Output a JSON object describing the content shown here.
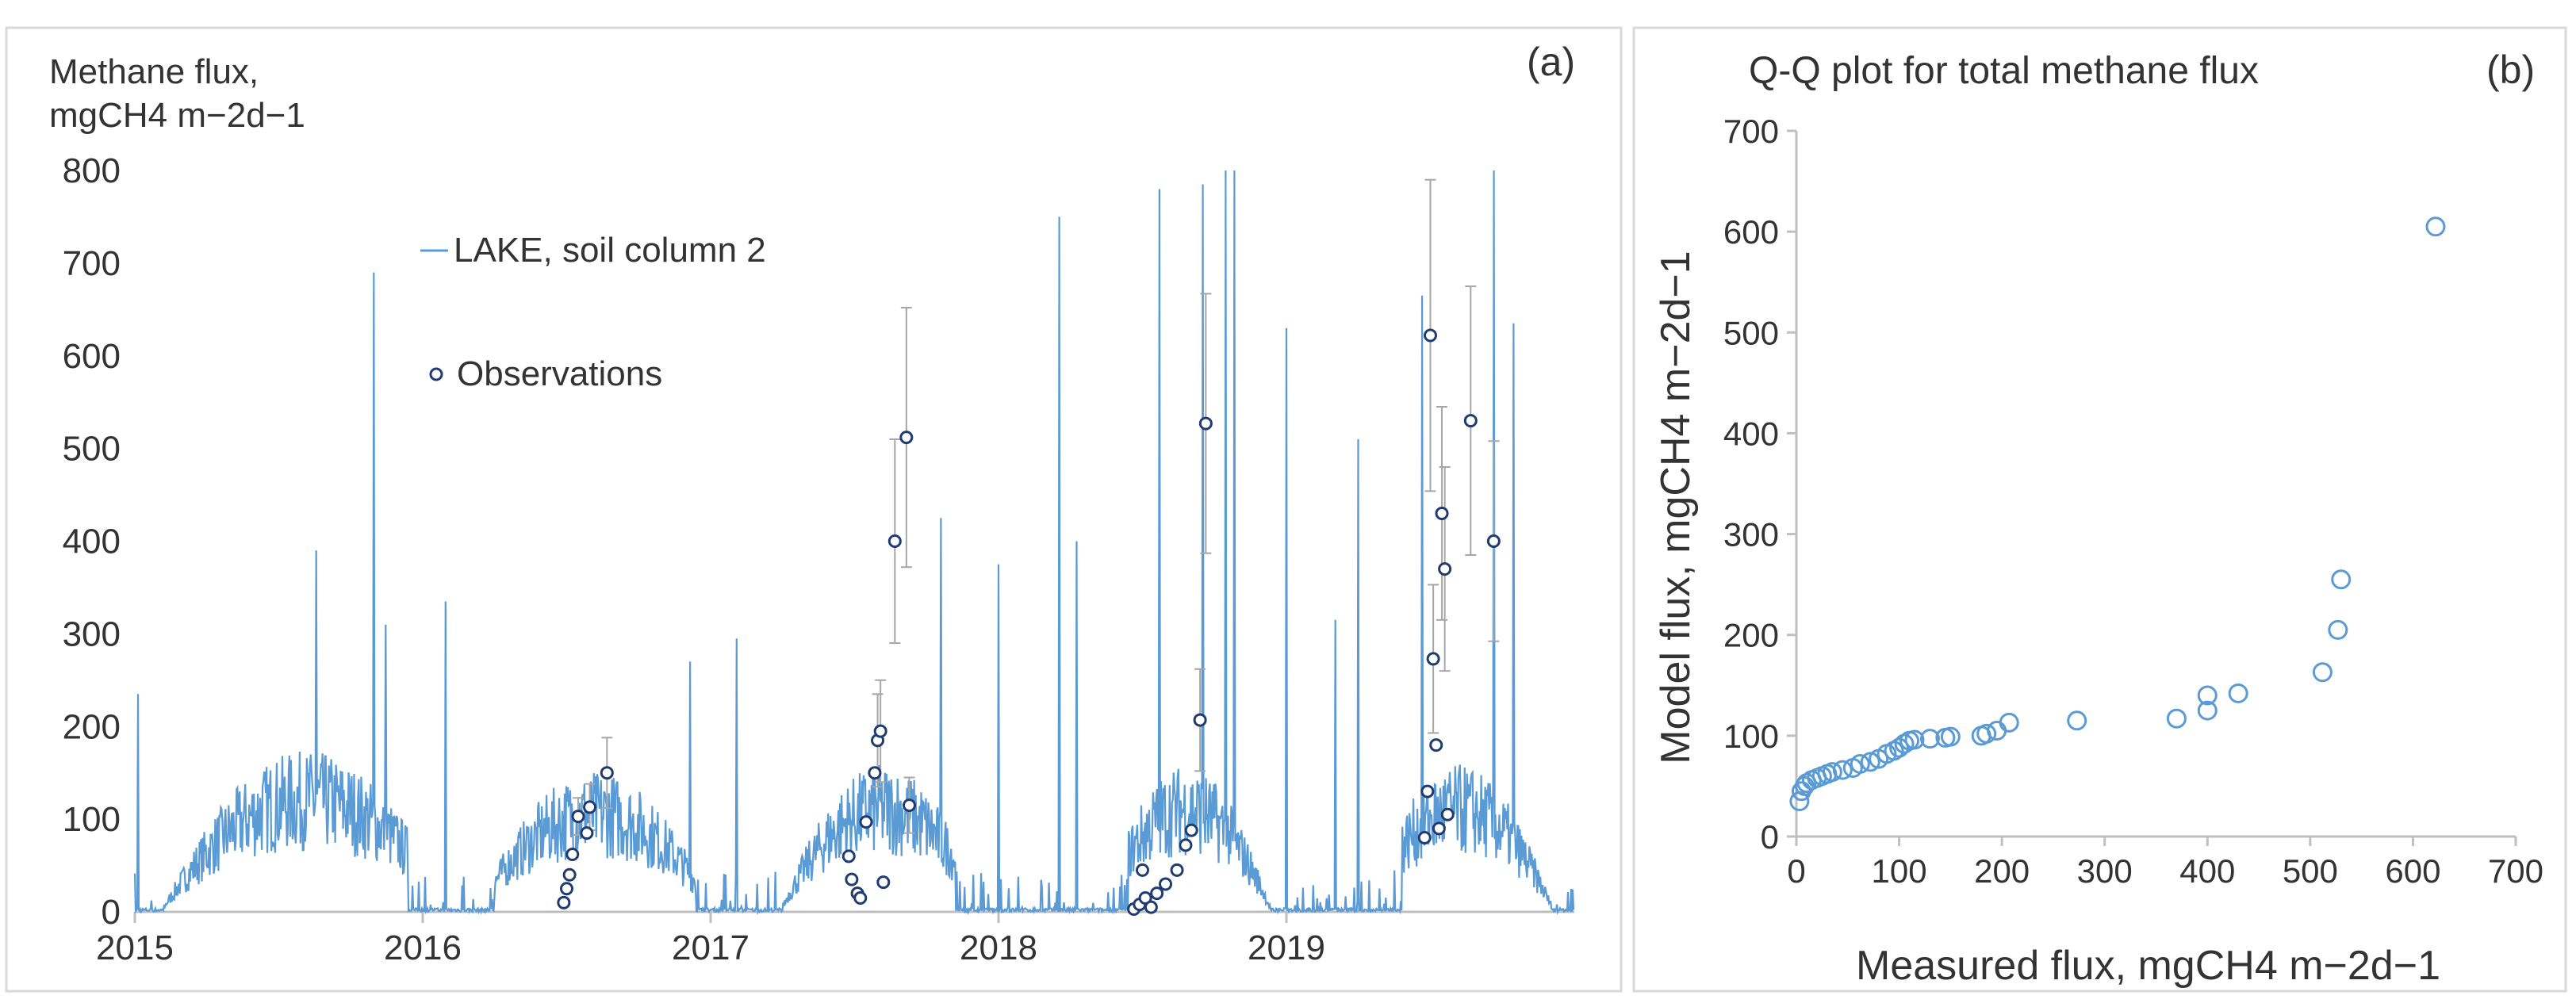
{
  "chart_data": [
    {
      "type": "line",
      "panel_label": "(a)",
      "ylabel_line1": "Methane flux,",
      "ylabel_line2": "mgCH4 m−2d−1",
      "ylim": [
        0,
        800
      ],
      "yticks": [
        0,
        100,
        200,
        300,
        400,
        500,
        600,
        700,
        800
      ],
      "xlim": [
        2015,
        2020
      ],
      "xticks": [
        "2015",
        "2016",
        "2017",
        "2018",
        "2019"
      ],
      "legend": {
        "line": "LAKE, soil column 2",
        "points": "Observations"
      },
      "series": [
        {
          "name": "LAKE, soil column 2",
          "color": "#5b9bd5",
          "spikes": [
            {
              "x": 2015.01,
              "y": 235
            },
            {
              "x": 2015.63,
              "y": 390
            },
            {
              "x": 2015.83,
              "y": 690
            },
            {
              "x": 2015.87,
              "y": 310
            },
            {
              "x": 2016.08,
              "y": 335
            },
            {
              "x": 2016.93,
              "y": 270
            },
            {
              "x": 2017.09,
              "y": 295
            },
            {
              "x": 2017.8,
              "y": 425
            },
            {
              "x": 2018.0,
              "y": 375
            },
            {
              "x": 2018.21,
              "y": 750
            },
            {
              "x": 2018.27,
              "y": 400
            },
            {
              "x": 2018.56,
              "y": 780
            },
            {
              "x": 2018.71,
              "y": 785
            },
            {
              "x": 2018.79,
              "y": 800
            },
            {
              "x": 2018.82,
              "y": 800
            },
            {
              "x": 2019.0,
              "y": 630
            },
            {
              "x": 2019.17,
              "y": 315
            },
            {
              "x": 2019.25,
              "y": 510
            },
            {
              "x": 2019.47,
              "y": 665
            },
            {
              "x": 2019.72,
              "y": 800
            },
            {
              "x": 2019.79,
              "y": 635
            }
          ],
          "summer_base": [
            {
              "from": 2015.1,
              "to": 2015.95,
              "peak_x": 2015.6,
              "peak_y": 120
            },
            {
              "from": 2016.25,
              "to": 2016.95,
              "peak_x": 2016.6,
              "peak_y": 105
            },
            {
              "from": 2017.25,
              "to": 2017.85,
              "peak_x": 2017.6,
              "peak_y": 110
            },
            {
              "from": 2018.45,
              "to": 2018.95,
              "peak_x": 2018.65,
              "peak_y": 110
            },
            {
              "from": 2019.4,
              "to": 2019.95,
              "peak_x": 2019.6,
              "peak_y": 110
            }
          ]
        },
        {
          "name": "Observations",
          "points": [
            {
              "x": 2016.49,
              "y": 10
            },
            {
              "x": 2016.5,
              "y": 25
            },
            {
              "x": 2016.51,
              "y": 40
            },
            {
              "x": 2016.52,
              "y": 62
            },
            {
              "x": 2016.54,
              "y": 103,
              "err": 20
            },
            {
              "x": 2016.57,
              "y": 85
            },
            {
              "x": 2016.58,
              "y": 113,
              "err": 25
            },
            {
              "x": 2016.64,
              "y": 150,
              "err": 38
            },
            {
              "x": 2017.48,
              "y": 60
            },
            {
              "x": 2017.49,
              "y": 35
            },
            {
              "x": 2017.51,
              "y": 20
            },
            {
              "x": 2017.52,
              "y": 15
            },
            {
              "x": 2017.54,
              "y": 97
            },
            {
              "x": 2017.57,
              "y": 150
            },
            {
              "x": 2017.58,
              "y": 185,
              "err": 50
            },
            {
              "x": 2017.59,
              "y": 195,
              "err": 55
            },
            {
              "x": 2017.6,
              "y": 32
            },
            {
              "x": 2017.64,
              "y": 400,
              "err": 110
            },
            {
              "x": 2017.68,
              "y": 512,
              "err": 140
            },
            {
              "x": 2017.69,
              "y": 115,
              "err": 30
            },
            {
              "x": 2018.47,
              "y": 3
            },
            {
              "x": 2018.49,
              "y": 8
            },
            {
              "x": 2018.5,
              "y": 45
            },
            {
              "x": 2018.51,
              "y": 15
            },
            {
              "x": 2018.53,
              "y": 5
            },
            {
              "x": 2018.55,
              "y": 20
            },
            {
              "x": 2018.58,
              "y": 30
            },
            {
              "x": 2018.62,
              "y": 45
            },
            {
              "x": 2018.65,
              "y": 72
            },
            {
              "x": 2018.67,
              "y": 88
            },
            {
              "x": 2018.7,
              "y": 207,
              "err": 55
            },
            {
              "x": 2018.72,
              "y": 527,
              "err": 140
            },
            {
              "x": 2019.48,
              "y": 80
            },
            {
              "x": 2019.49,
              "y": 130
            },
            {
              "x": 2019.5,
              "y": 622,
              "err": 168
            },
            {
              "x": 2019.51,
              "y": 273,
              "err": 80
            },
            {
              "x": 2019.52,
              "y": 180
            },
            {
              "x": 2019.53,
              "y": 90
            },
            {
              "x": 2019.54,
              "y": 430,
              "err": 115
            },
            {
              "x": 2019.55,
              "y": 370,
              "err": 110
            },
            {
              "x": 2019.56,
              "y": 105
            },
            {
              "x": 2019.64,
              "y": 530,
              "err": 145
            },
            {
              "x": 2019.72,
              "y": 400,
              "err": 108
            }
          ]
        }
      ]
    },
    {
      "type": "scatter",
      "panel_label": "(b)",
      "title": "Q-Q plot for total methane flux",
      "xlabel": "Measured flux, mgCH4 m−2d−1",
      "ylabel": "Model flux, mgCH4 m−2d−1",
      "xlim": [
        0,
        700
      ],
      "ylim": [
        0,
        700
      ],
      "xticks": [
        0,
        100,
        200,
        300,
        400,
        500,
        600,
        700
      ],
      "yticks": [
        0,
        100,
        200,
        300,
        400,
        500,
        600,
        700
      ],
      "color": "#5b9bd5",
      "points": [
        {
          "x": 3,
          "y": 35
        },
        {
          "x": 5,
          "y": 45
        },
        {
          "x": 8,
          "y": 50
        },
        {
          "x": 10,
          "y": 53
        },
        {
          "x": 15,
          "y": 56
        },
        {
          "x": 20,
          "y": 58
        },
        {
          "x": 25,
          "y": 60
        },
        {
          "x": 30,
          "y": 62
        },
        {
          "x": 35,
          "y": 64
        },
        {
          "x": 45,
          "y": 66
        },
        {
          "x": 55,
          "y": 68
        },
        {
          "x": 62,
          "y": 72
        },
        {
          "x": 72,
          "y": 74
        },
        {
          "x": 80,
          "y": 77
        },
        {
          "x": 88,
          "y": 82
        },
        {
          "x": 95,
          "y": 85
        },
        {
          "x": 100,
          "y": 88
        },
        {
          "x": 105,
          "y": 92
        },
        {
          "x": 110,
          "y": 95
        },
        {
          "x": 115,
          "y": 96
        },
        {
          "x": 130,
          "y": 97
        },
        {
          "x": 145,
          "y": 98
        },
        {
          "x": 150,
          "y": 99
        },
        {
          "x": 180,
          "y": 100
        },
        {
          "x": 185,
          "y": 102
        },
        {
          "x": 195,
          "y": 105
        },
        {
          "x": 207,
          "y": 113
        },
        {
          "x": 273,
          "y": 115
        },
        {
          "x": 370,
          "y": 117
        },
        {
          "x": 400,
          "y": 125
        },
        {
          "x": 400,
          "y": 140
        },
        {
          "x": 430,
          "y": 142
        },
        {
          "x": 512,
          "y": 163
        },
        {
          "x": 527,
          "y": 205
        },
        {
          "x": 530,
          "y": 255
        },
        {
          "x": 622,
          "y": 605
        }
      ]
    }
  ]
}
